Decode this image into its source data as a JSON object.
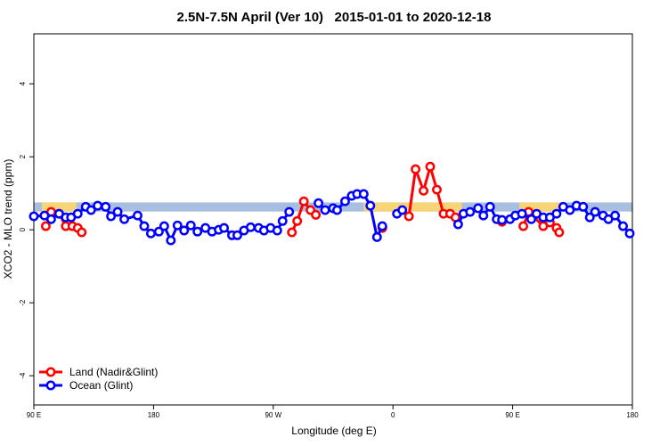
{
  "chart_data": {
    "type": "line",
    "title": "2.5N-7.5N April (Ver 10)   2015-01-01 to 2020-12-18",
    "x_label": "Longitude (deg E)",
    "y_label": "XCO2 - MLO trend (ppm)",
    "xlim": [
      90,
      540
    ],
    "ylim": [
      -4.8,
      5.37
    ],
    "xticks": [
      {
        "value": 90,
        "label": "90 E"
      },
      {
        "value": 180,
        "label": "180"
      },
      {
        "value": 270,
        "label": "90 W"
      },
      {
        "value": 360,
        "label": "0"
      },
      {
        "value": 450,
        "label": "90 E"
      },
      {
        "value": 540,
        "label": "180"
      }
    ],
    "yticks": [
      -4,
      -2,
      0,
      2,
      4
    ],
    "legend": "bottomleft",
    "reference_band": {
      "ylim": [
        0.5,
        0.75
      ],
      "color": "#a9bfe0"
    },
    "land_regions": {
      "color": "#f7d477",
      "x": [
        [
          96,
          122
        ],
        [
          338,
          412
        ],
        [
          455,
          487
        ]
      ]
    },
    "series": [
      {
        "name": "Land (Nadir&Glint)",
        "color": "#ff0000",
        "x": [
          99,
          103,
          109,
          114,
          119,
          123,
          126,
          null,
          284,
          288,
          293,
          298,
          302,
          null,
          352,
          null,
          372,
          377,
          383,
          388,
          393,
          398,
          403,
          407,
          null,
          442,
          null,
          458,
          462,
          473,
          478,
          483,
          485
        ],
        "values": [
          0.1,
          0.49,
          0.44,
          0.1,
          0.1,
          0.05,
          -0.07,
          null,
          -0.07,
          0.24,
          0.78,
          0.54,
          0.41,
          null,
          0.05,
          null,
          0.37,
          1.66,
          1.07,
          1.73,
          1.1,
          0.44,
          0.44,
          0.34,
          null,
          0.22,
          null,
          0.1,
          0.49,
          0.1,
          0.2,
          0.05,
          -0.07
        ]
      },
      {
        "name": "Ocean (Glint)",
        "color": "#0000ff",
        "x": [
          90,
          98,
          103,
          109,
          114,
          118,
          123,
          129,
          133,
          138,
          144,
          148,
          153,
          158,
          168,
          173,
          178,
          184,
          188,
          193,
          198,
          203,
          208,
          213,
          219,
          224,
          229,
          233,
          239,
          243,
          248,
          253,
          259,
          263,
          268,
          273,
          277,
          282,
          null,
          304,
          309,
          315,
          318,
          324,
          329,
          333,
          338,
          343,
          348,
          352,
          null,
          363,
          367,
          null,
          409,
          413,
          418,
          424,
          428,
          433,
          438,
          442,
          448,
          452,
          457,
          464,
          468,
          473,
          478,
          483,
          488,
          493,
          498,
          503,
          508,
          512,
          518,
          522,
          527,
          533,
          538
        ],
        "values": [
          0.37,
          0.39,
          0.29,
          0.44,
          0.34,
          0.34,
          0.44,
          0.63,
          0.54,
          0.66,
          0.63,
          0.37,
          0.49,
          0.29,
          0.39,
          0.1,
          -0.1,
          -0.05,
          0.1,
          -0.29,
          0.12,
          -0.02,
          0.12,
          -0.05,
          0.05,
          -0.05,
          0.0,
          0.05,
          -0.15,
          -0.15,
          -0.02,
          0.07,
          0.05,
          -0.02,
          0.05,
          -0.02,
          0.24,
          0.49,
          null,
          0.73,
          0.54,
          0.59,
          0.54,
          0.78,
          0.93,
          0.98,
          0.98,
          0.66,
          -0.2,
          0.1,
          null,
          0.44,
          0.54,
          null,
          0.15,
          0.44,
          0.49,
          0.59,
          0.39,
          0.63,
          0.29,
          0.27,
          0.29,
          0.39,
          0.44,
          0.29,
          0.44,
          0.34,
          0.34,
          0.44,
          0.63,
          0.54,
          0.66,
          0.63,
          0.34,
          0.49,
          0.39,
          0.29,
          0.39,
          0.1,
          -0.1
        ]
      }
    ]
  }
}
